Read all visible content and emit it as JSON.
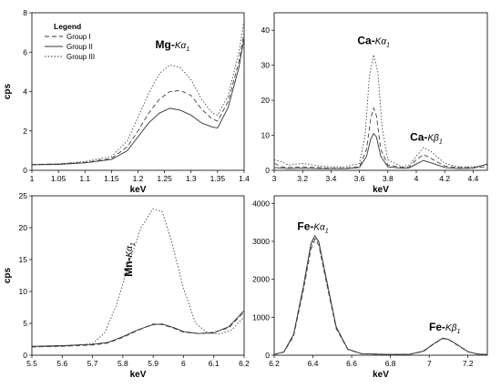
{
  "chart_data": [
    {
      "type": "line",
      "xlabel": "keV",
      "ylabel": "cps",
      "xlim": [
        1,
        1.4
      ],
      "ylim": [
        0,
        8
      ],
      "xticks": [
        "1",
        "1.05",
        "1.1",
        "1.15",
        "1.2",
        "1.25",
        "1.3",
        "1.35",
        "1.4"
      ],
      "yticks": [
        "0",
        "2",
        "4",
        "6",
        "8"
      ],
      "annotation": {
        "main": "Mg-",
        "sub": "Kα",
        "index": "1",
        "x": 1.265,
        "y": 6.2
      },
      "legend": {
        "title": "Legend",
        "position": "top-left",
        "entries": [
          "Group I",
          "Group II",
          "Group III"
        ]
      },
      "series": [
        {
          "name": "Group I",
          "style": "dashed",
          "points": [
            [
              1.0,
              0.3
            ],
            [
              1.05,
              0.32
            ],
            [
              1.1,
              0.4
            ],
            [
              1.15,
              0.6
            ],
            [
              1.18,
              1.2
            ],
            [
              1.2,
              2.0
            ],
            [
              1.22,
              2.9
            ],
            [
              1.24,
              3.6
            ],
            [
              1.26,
              4.0
            ],
            [
              1.28,
              4.05
            ],
            [
              1.3,
              3.8
            ],
            [
              1.32,
              3.1
            ],
            [
              1.34,
              2.6
            ],
            [
              1.35,
              2.5
            ],
            [
              1.37,
              3.5
            ],
            [
              1.39,
              5.5
            ],
            [
              1.4,
              7.0
            ]
          ]
        },
        {
          "name": "Group II",
          "style": "solid",
          "points": [
            [
              1.0,
              0.28
            ],
            [
              1.05,
              0.3
            ],
            [
              1.1,
              0.38
            ],
            [
              1.15,
              0.55
            ],
            [
              1.18,
              1.0
            ],
            [
              1.2,
              1.7
            ],
            [
              1.22,
              2.4
            ],
            [
              1.24,
              2.9
            ],
            [
              1.26,
              3.15
            ],
            [
              1.28,
              3.05
            ],
            [
              1.3,
              2.8
            ],
            [
              1.32,
              2.4
            ],
            [
              1.34,
              2.2
            ],
            [
              1.35,
              2.15
            ],
            [
              1.37,
              3.2
            ],
            [
              1.39,
              5.2
            ],
            [
              1.4,
              6.7
            ]
          ]
        },
        {
          "name": "Group III",
          "style": "dotted",
          "points": [
            [
              1.0,
              0.3
            ],
            [
              1.05,
              0.33
            ],
            [
              1.1,
              0.45
            ],
            [
              1.15,
              0.7
            ],
            [
              1.18,
              1.5
            ],
            [
              1.2,
              2.7
            ],
            [
              1.22,
              3.9
            ],
            [
              1.24,
              4.9
            ],
            [
              1.26,
              5.35
            ],
            [
              1.28,
              5.2
            ],
            [
              1.3,
              4.6
            ],
            [
              1.32,
              3.6
            ],
            [
              1.34,
              2.9
            ],
            [
              1.35,
              2.8
            ],
            [
              1.37,
              3.8
            ],
            [
              1.39,
              6.0
            ],
            [
              1.4,
              7.6
            ]
          ]
        }
      ]
    },
    {
      "type": "line",
      "xlabel": "keV",
      "ylabel": "",
      "xlim": [
        3,
        4.5
      ],
      "ylim": [
        0,
        45
      ],
      "xticks": [
        "3",
        "3.2",
        "3.4",
        "3.6",
        "3.8",
        "4",
        "4.2",
        "4.4"
      ],
      "yticks": [
        "0",
        "10",
        "20",
        "30",
        "40"
      ],
      "annotations": [
        {
          "main": "Ca-",
          "sub": "Kα",
          "index": "1",
          "x": 3.7,
          "y": 36
        },
        {
          "main": "Ca-",
          "sub": "Kβ",
          "index": "1",
          "x": 4.07,
          "y": 8.5
        }
      ],
      "series": [
        {
          "name": "Group I",
          "style": "dashed",
          "points": [
            [
              3.0,
              2.0
            ],
            [
              3.05,
              1.0
            ],
            [
              3.1,
              0.8
            ],
            [
              3.2,
              1.0
            ],
            [
              3.3,
              0.8
            ],
            [
              3.4,
              0.6
            ],
            [
              3.5,
              0.6
            ],
            [
              3.6,
              1.0
            ],
            [
              3.65,
              6.0
            ],
            [
              3.68,
              15.0
            ],
            [
              3.7,
              17.8
            ],
            [
              3.72,
              15.5
            ],
            [
              3.75,
              6.0
            ],
            [
              3.8,
              1.5
            ],
            [
              3.9,
              0.8
            ],
            [
              3.95,
              1.0
            ],
            [
              4.0,
              3.0
            ],
            [
              4.05,
              4.5
            ],
            [
              4.1,
              3.5
            ],
            [
              4.2,
              1.2
            ],
            [
              4.3,
              0.8
            ],
            [
              4.4,
              0.8
            ],
            [
              4.5,
              1.0
            ]
          ]
        },
        {
          "name": "Group II",
          "style": "solid",
          "points": [
            [
              3.0,
              0.8
            ],
            [
              3.1,
              0.5
            ],
            [
              3.2,
              0.6
            ],
            [
              3.3,
              0.5
            ],
            [
              3.4,
              0.5
            ],
            [
              3.5,
              0.5
            ],
            [
              3.6,
              0.8
            ],
            [
              3.65,
              4.0
            ],
            [
              3.68,
              9.0
            ],
            [
              3.7,
              10.5
            ],
            [
              3.72,
              9.5
            ],
            [
              3.75,
              4.0
            ],
            [
              3.8,
              1.0
            ],
            [
              3.9,
              0.6
            ],
            [
              3.95,
              0.7
            ],
            [
              4.0,
              1.8
            ],
            [
              4.05,
              2.8
            ],
            [
              4.1,
              2.2
            ],
            [
              4.2,
              0.8
            ],
            [
              4.3,
              0.5
            ],
            [
              4.4,
              0.6
            ],
            [
              4.5,
              1.8
            ]
          ]
        },
        {
          "name": "Group III",
          "style": "dotted",
          "points": [
            [
              3.0,
              3.0
            ],
            [
              3.05,
              2.5
            ],
            [
              3.1,
              1.5
            ],
            [
              3.2,
              2.0
            ],
            [
              3.3,
              1.3
            ],
            [
              3.4,
              1.0
            ],
            [
              3.5,
              1.0
            ],
            [
              3.6,
              2.0
            ],
            [
              3.64,
              10.0
            ],
            [
              3.67,
              27.0
            ],
            [
              3.7,
              33.0
            ],
            [
              3.73,
              28.0
            ],
            [
              3.76,
              12.0
            ],
            [
              3.8,
              3.0
            ],
            [
              3.9,
              1.0
            ],
            [
              3.95,
              1.5
            ],
            [
              4.0,
              4.0
            ],
            [
              4.05,
              6.5
            ],
            [
              4.1,
              5.5
            ],
            [
              4.2,
              2.0
            ],
            [
              4.3,
              1.0
            ],
            [
              4.4,
              1.0
            ],
            [
              4.5,
              1.5
            ]
          ]
        }
      ]
    },
    {
      "type": "line",
      "xlabel": "keV",
      "ylabel": "cps",
      "xlim": [
        5.5,
        6.2
      ],
      "ylim": [
        0,
        25
      ],
      "xticks": [
        "5.5",
        "5.6",
        "5.7",
        "5.8",
        "5.9",
        "6",
        "6.1",
        "6.2"
      ],
      "yticks": [
        "0",
        "5",
        "10",
        "15",
        "20",
        "25"
      ],
      "annotation": {
        "main": "Mn-",
        "sub": "Kα",
        "index": "1",
        "x": 5.83,
        "y": 15,
        "rotated": true
      },
      "series": [
        {
          "name": "Group I",
          "style": "dashed",
          "points": [
            [
              5.5,
              1.3
            ],
            [
              5.6,
              1.4
            ],
            [
              5.7,
              1.6
            ],
            [
              5.75,
              1.9
            ],
            [
              5.8,
              2.8
            ],
            [
              5.85,
              3.9
            ],
            [
              5.9,
              4.9
            ],
            [
              5.93,
              4.8
            ],
            [
              5.97,
              4.2
            ],
            [
              6.0,
              3.6
            ],
            [
              6.05,
              3.4
            ],
            [
              6.1,
              3.6
            ],
            [
              6.15,
              4.3
            ],
            [
              6.2,
              6.8
            ]
          ]
        },
        {
          "name": "Group II",
          "style": "solid",
          "points": [
            [
              5.5,
              1.4
            ],
            [
              5.6,
              1.5
            ],
            [
              5.7,
              1.7
            ],
            [
              5.75,
              2.0
            ],
            [
              5.8,
              2.9
            ],
            [
              5.85,
              4.0
            ],
            [
              5.9,
              4.8
            ],
            [
              5.93,
              4.9
            ],
            [
              5.97,
              4.3
            ],
            [
              6.0,
              3.7
            ],
            [
              6.05,
              3.4
            ],
            [
              6.1,
              3.5
            ],
            [
              6.15,
              4.5
            ],
            [
              6.2,
              7.0
            ]
          ]
        },
        {
          "name": "Group III",
          "style": "dotted",
          "points": [
            [
              5.5,
              1.3
            ],
            [
              5.6,
              1.4
            ],
            [
              5.7,
              1.8
            ],
            [
              5.74,
              3.5
            ],
            [
              5.78,
              8.0
            ],
            [
              5.82,
              14.5
            ],
            [
              5.86,
              20.0
            ],
            [
              5.9,
              23.0
            ],
            [
              5.93,
              22.5
            ],
            [
              5.96,
              18.0
            ],
            [
              6.0,
              10.5
            ],
            [
              6.04,
              5.0
            ],
            [
              6.08,
              3.5
            ],
            [
              6.12,
              3.3
            ],
            [
              6.16,
              4.0
            ],
            [
              6.2,
              6.0
            ]
          ]
        }
      ]
    },
    {
      "type": "line",
      "xlabel": "keV",
      "ylabel": "",
      "xlim": [
        6.2,
        7.3
      ],
      "ylim": [
        0,
        4200
      ],
      "xticks": [
        "6.2",
        "6.4",
        "6.6",
        "6.8",
        "7",
        "7.2"
      ],
      "yticks": [
        "0",
        "1000",
        "2000",
        "3000",
        "4000"
      ],
      "annotations": [
        {
          "main": "Fe-",
          "sub": "Kα",
          "index": "1",
          "x": 6.4,
          "y": 3300
        },
        {
          "main": "Fe-",
          "sub": "Kβ",
          "index": "1",
          "x": 7.08,
          "y": 650
        }
      ],
      "series": [
        {
          "name": "Group I",
          "style": "dashed",
          "points": [
            [
              6.2,
              20
            ],
            [
              6.25,
              80
            ],
            [
              6.3,
              500
            ],
            [
              6.35,
              1700
            ],
            [
              6.39,
              2800
            ],
            [
              6.41,
              3050
            ],
            [
              6.43,
              2900
            ],
            [
              6.47,
              1900
            ],
            [
              6.52,
              700
            ],
            [
              6.58,
              150
            ],
            [
              6.65,
              40
            ],
            [
              6.8,
              20
            ],
            [
              6.9,
              25
            ],
            [
              6.97,
              100
            ],
            [
              7.02,
              280
            ],
            [
              7.07,
              440
            ],
            [
              7.1,
              410
            ],
            [
              7.15,
              250
            ],
            [
              7.2,
              90
            ],
            [
              7.25,
              30
            ],
            [
              7.3,
              20
            ]
          ]
        },
        {
          "name": "Group II",
          "style": "solid",
          "points": [
            [
              6.2,
              20
            ],
            [
              6.25,
              90
            ],
            [
              6.3,
              550
            ],
            [
              6.35,
              1800
            ],
            [
              6.39,
              2950
            ],
            [
              6.41,
              3150
            ],
            [
              6.43,
              3000
            ],
            [
              6.47,
              2000
            ],
            [
              6.52,
              750
            ],
            [
              6.58,
              160
            ],
            [
              6.65,
              40
            ],
            [
              6.8,
              20
            ],
            [
              6.9,
              25
            ],
            [
              6.97,
              110
            ],
            [
              7.02,
              290
            ],
            [
              7.07,
              450
            ],
            [
              7.1,
              420
            ],
            [
              7.15,
              260
            ],
            [
              7.2,
              95
            ],
            [
              7.25,
              30
            ],
            [
              7.3,
              20
            ]
          ]
        },
        {
          "name": "Group III",
          "style": "dotted",
          "points": [
            [
              6.2,
              20
            ],
            [
              6.25,
              85
            ],
            [
              6.3,
              520
            ],
            [
              6.35,
              1750
            ],
            [
              6.39,
              2870
            ],
            [
              6.41,
              3100
            ],
            [
              6.43,
              2950
            ],
            [
              6.47,
              1950
            ],
            [
              6.52,
              720
            ],
            [
              6.58,
              155
            ],
            [
              6.65,
              40
            ],
            [
              6.8,
              20
            ],
            [
              6.9,
              25
            ],
            [
              6.97,
              105
            ],
            [
              7.02,
              285
            ],
            [
              7.07,
              445
            ],
            [
              7.1,
              415
            ],
            [
              7.15,
              255
            ],
            [
              7.2,
              92
            ],
            [
              7.25,
              30
            ],
            [
              7.3,
              20
            ]
          ]
        }
      ]
    }
  ]
}
